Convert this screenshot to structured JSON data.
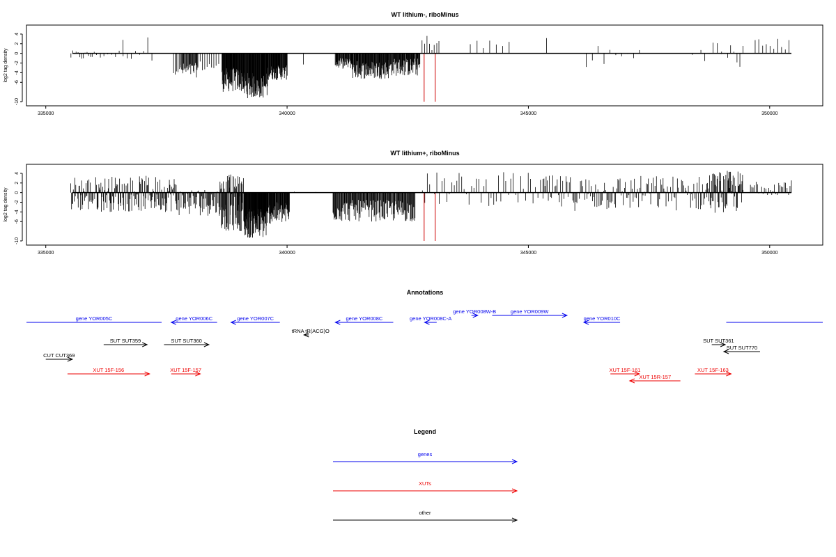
{
  "chart_data": [
    {
      "type": "bar",
      "title": "WT lithium-, riboMinus",
      "ylabel": "log2 tag density",
      "xlim": [
        334600,
        351100
      ],
      "ylim": [
        -10,
        5
      ],
      "yticks": [
        4,
        2,
        0,
        -2,
        -4,
        -6,
        -10
      ],
      "xticks": [
        335000,
        340000,
        345000,
        350000
      ],
      "grid": false,
      "series": [
        {
          "style": "black-spikes",
          "segments": [
            {
              "x0": 335520,
              "x1": 336000,
              "min": -1.5,
              "max": 0.6,
              "n": 14
            },
            {
              "x0": 336050,
              "x1": 336600,
              "min": -1.2,
              "max": 0.8,
              "n": 8
            },
            {
              "x0": 336600,
              "x1": 337200,
              "min": -1.6,
              "max": 3.6,
              "n": 8
            },
            {
              "x0": 337650,
              "x1": 337800,
              "min": -4.4,
              "max": -2.0,
              "n": 6
            },
            {
              "x0": 337800,
              "x1": 338150,
              "min": -5.0,
              "max": -2.0,
              "n": 28
            },
            {
              "x0": 338150,
              "x1": 338580,
              "min": -3.8,
              "max": -1.5,
              "n": 10
            },
            {
              "x0": 338650,
              "x1": 339100,
              "min": -8.0,
              "max": -3.0,
              "n": 70
            },
            {
              "x0": 339100,
              "x1": 339600,
              "min": -9.3,
              "max": -4.0,
              "n": 80
            },
            {
              "x0": 339600,
              "x1": 340000,
              "min": -5.5,
              "max": -2.5,
              "n": 55
            },
            {
              "x0": 340330,
              "x1": 340350,
              "min": -2.3,
              "max": -2.3,
              "n": 1
            },
            {
              "x0": 341000,
              "x1": 341350,
              "min": -3.2,
              "max": -1.0,
              "n": 40
            },
            {
              "x0": 341350,
              "x1": 342100,
              "min": -5.3,
              "max": -1.5,
              "n": 90
            },
            {
              "x0": 342100,
              "x1": 342750,
              "min": -4.7,
              "max": -1.0,
              "n": 70
            },
            {
              "x0": 342800,
              "x1": 343150,
              "min": 0.5,
              "max": 3.9,
              "n": 8
            },
            {
              "x0": 343800,
              "x1": 344600,
              "min": 0.5,
              "max": 3.0,
              "n": 7
            },
            {
              "x0": 345350,
              "x1": 345400,
              "min": 3.0,
              "max": 3.3,
              "n": 1
            },
            {
              "x0": 346200,
              "x1": 347300,
              "min": -3.2,
              "max": 1.8,
              "n": 10
            },
            {
              "x0": 348400,
              "x1": 349000,
              "min": -1.6,
              "max": 2.9,
              "n": 8
            },
            {
              "x0": 349000,
              "x1": 349450,
              "min": -3.3,
              "max": 2.5,
              "n": 8
            },
            {
              "x0": 349700,
              "x1": 350400,
              "min": 0.6,
              "max": 3.1,
              "n": 10
            }
          ]
        },
        {
          "style": "red-markers",
          "x": [
            342840,
            343070
          ],
          "y": -10
        }
      ]
    },
    {
      "type": "bar",
      "title": "WT lithium+, riboMinus",
      "ylabel": "log2 tag density",
      "xlim": [
        334600,
        351100
      ],
      "ylim": [
        -10,
        5
      ],
      "yticks": [
        4,
        2,
        0,
        -2,
        -4,
        -6,
        -10
      ],
      "xticks": [
        335000,
        340000,
        345000,
        350000
      ],
      "grid": false,
      "series": [
        {
          "style": "black-spikes",
          "segments": [
            {
              "x0": 335520,
              "x1": 337700,
              "min": -4.0,
              "max": 3.5,
              "n": 170
            },
            {
              "x0": 337700,
              "x1": 338600,
              "min": -4.8,
              "max": 1.0,
              "n": 60
            },
            {
              "x0": 338600,
              "x1": 339100,
              "min": -8.0,
              "max": 3.8,
              "n": 80
            },
            {
              "x0": 339100,
              "x1": 339600,
              "min": -9.5,
              "max": -3.0,
              "n": 90
            },
            {
              "x0": 339600,
              "x1": 340050,
              "min": -6.5,
              "max": -2.0,
              "n": 60
            },
            {
              "x0": 340150,
              "x1": 340600,
              "min": -3.0,
              "max": 2.0,
              "n": 4
            },
            {
              "x0": 340950,
              "x1": 342650,
              "min": -6.0,
              "max": -1.5,
              "n": 140
            },
            {
              "x0": 342800,
              "x1": 345300,
              "min": -2.8,
              "max": 4.3,
              "n": 50
            },
            {
              "x0": 345300,
              "x1": 348700,
              "min": -3.8,
              "max": 3.6,
              "n": 150
            },
            {
              "x0": 348700,
              "x1": 349450,
              "min": -4.2,
              "max": 4.6,
              "n": 70
            },
            {
              "x0": 349600,
              "x1": 350450,
              "min": -0.5,
              "max": 3.0,
              "n": 30
            }
          ]
        },
        {
          "style": "red-markers",
          "x": [
            342840,
            343070
          ],
          "y": -10
        }
      ]
    }
  ],
  "annotations": {
    "title": "Annotations",
    "rows": [
      [
        {
          "label": "gene YOR005C",
          "color": "#0000ee",
          "x0": 334600,
          "x1": 337400,
          "dir": "none"
        },
        {
          "label": "gene YOR006C",
          "color": "#0000ee",
          "x0": 337600,
          "x1": 338550,
          "dir": "left"
        },
        {
          "label": "gene YOR007C",
          "color": "#0000ee",
          "x0": 338840,
          "x1": 339850,
          "dir": "left"
        },
        {
          "label": "gene YOR008C",
          "color": "#0000ee",
          "x0": 341000,
          "x1": 342200,
          "dir": "left"
        },
        {
          "label": "gene YOR008C-A",
          "color": "#0000ee",
          "x0": 342850,
          "x1": 343100,
          "dir": "left"
        },
        {
          "label": "gene YOR010C",
          "color": "#0000ee",
          "x0": 346150,
          "x1": 346900,
          "dir": "left"
        },
        {
          "label": "",
          "color": "#0000ee",
          "x0": 349100,
          "x1": 351100,
          "dir": "none"
        }
      ],
      [
        {
          "label": "gene YOR008W-B",
          "color": "#0000ee",
          "x0": 343820,
          "x1": 343950,
          "dir": "right"
        },
        {
          "label": "gene YOR009W",
          "color": "#0000ee",
          "x0": 344250,
          "x1": 345800,
          "dir": "right"
        }
      ],
      [
        {
          "label": "tRNA tR(ACG)O",
          "color": "#000000",
          "x0": 340350,
          "x1": 340450,
          "dir": "left",
          "shift": 6
        }
      ],
      [
        {
          "label": "SUT SUT359",
          "color": "#000000",
          "x0": 336200,
          "x1": 337100,
          "dir": "right"
        },
        {
          "label": "SUT SUT360",
          "color": "#000000",
          "x0": 337450,
          "x1": 338380,
          "dir": "right"
        },
        {
          "label": "SUT SUT361",
          "color": "#000000",
          "x0": 348800,
          "x1": 349080,
          "dir": "right"
        }
      ],
      [
        {
          "label": "SUT SUT770",
          "color": "#000000",
          "x0": 349050,
          "x1": 349800,
          "dir": "left"
        }
      ],
      [
        {
          "label": "CUT CUT369",
          "color": "#000000",
          "x0": 335000,
          "x1": 335550,
          "dir": "right"
        }
      ],
      [
        {
          "label": "XUT 15F-156",
          "color": "#ee0000",
          "x0": 335450,
          "x1": 337150,
          "dir": "right"
        },
        {
          "label": "XUT 15F-157",
          "color": "#ee0000",
          "x0": 337600,
          "x1": 338200,
          "dir": "right"
        },
        {
          "label": "XUT 15F-161",
          "color": "#ee0000",
          "x0": 346700,
          "x1": 347300,
          "dir": "right"
        },
        {
          "label": "XUT 15F-163",
          "color": "#ee0000",
          "x0": 348450,
          "x1": 349200,
          "dir": "right"
        }
      ],
      [
        {
          "label": "XUT 15R-157",
          "color": "#ee0000",
          "x0": 347100,
          "x1": 348150,
          "dir": "left"
        }
      ]
    ]
  },
  "legend": {
    "title": "Legend",
    "items": [
      {
        "label": "genes",
        "color": "#0000ee"
      },
      {
        "label": "XUTs",
        "color": "#ee0000"
      },
      {
        "label": "other",
        "color": "#000000"
      }
    ]
  }
}
